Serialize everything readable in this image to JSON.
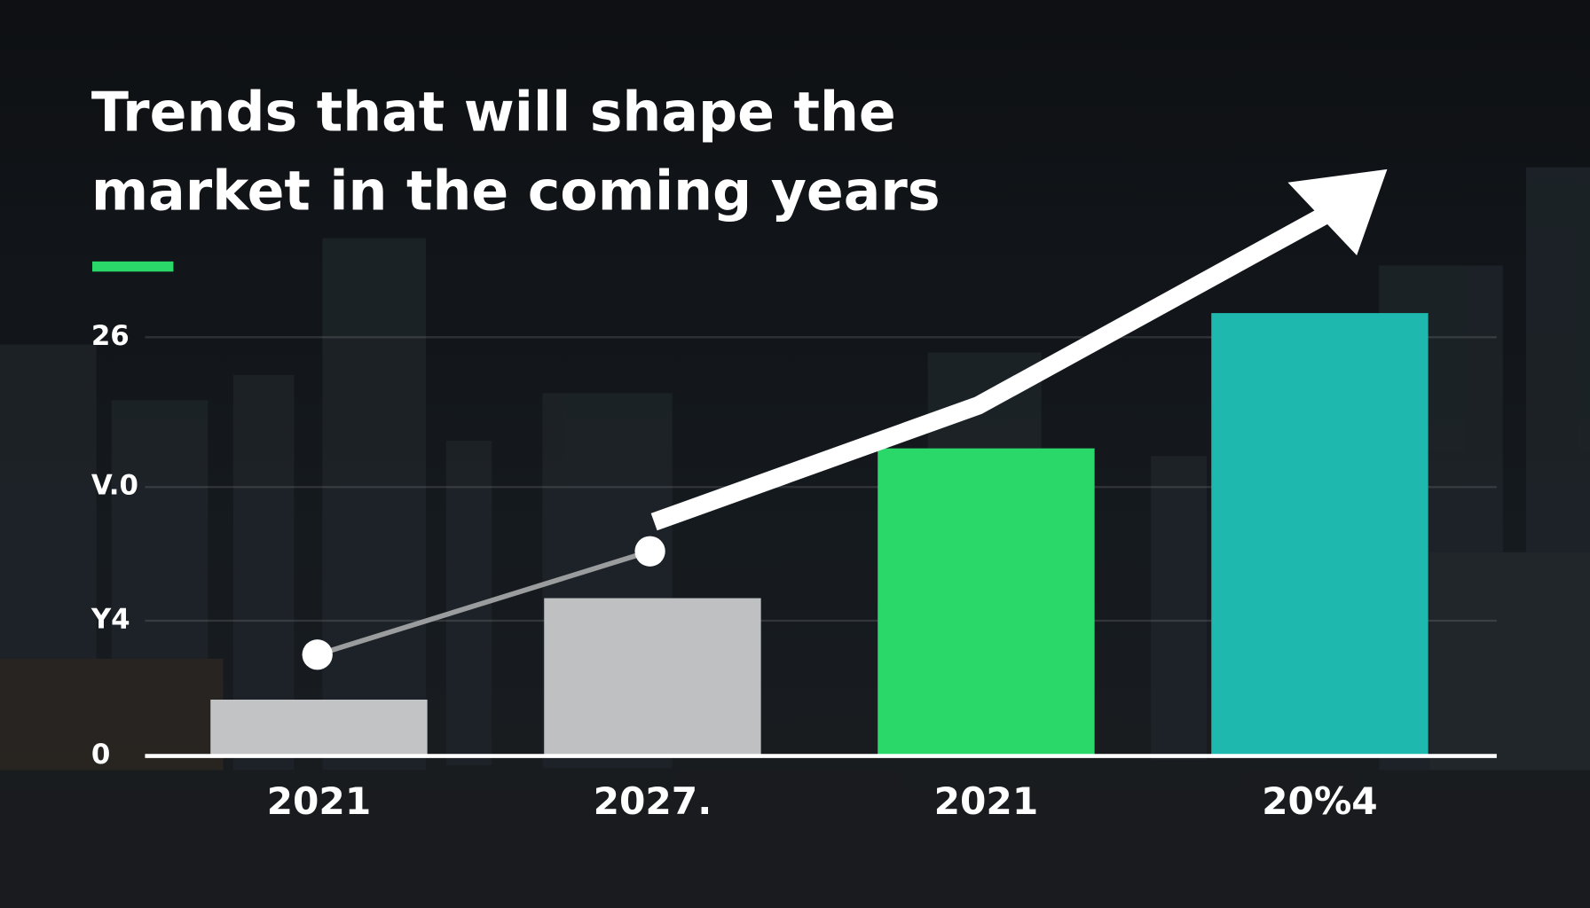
{
  "chart_data": {
    "type": "bar",
    "title": [
      "Trends that will shape the",
      "market in the coming years"
    ],
    "categories": [
      "2021",
      "2027.",
      "2021",
      "20%4"
    ],
    "values": [
      3.5,
      9.8,
      19.1,
      27.5
    ],
    "colors": [
      "#c2c3c4",
      "#bfc0c1",
      "#2ad86a",
      "#1fb8ae"
    ],
    "ylim": [
      0,
      28
    ],
    "yticks": [
      0,
      {
        "value": 8.4,
        "label": "Y4"
      },
      {
        "value": 16.7,
        "label": "V.0"
      },
      26
    ],
    "grid": true
  }
}
